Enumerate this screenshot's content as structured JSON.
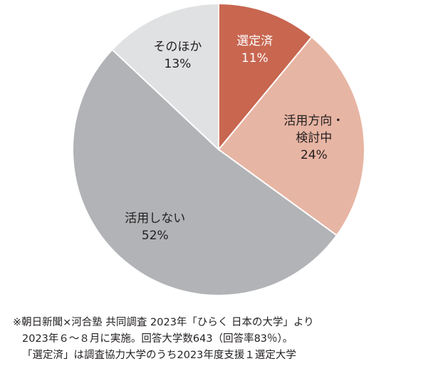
{
  "chart_data": {
    "type": "pie",
    "slices": [
      {
        "label": [
          "選定済"
        ],
        "value": 11,
        "value_label": "11%",
        "color": "#c86650",
        "text_color": "#ffffff"
      },
      {
        "label": [
          "活用方向・",
          "検討中"
        ],
        "value": 24,
        "value_label": "24%",
        "color": "#e7b5a3",
        "text_color": "#231f20"
      },
      {
        "label": [
          "活用しない"
        ],
        "value": 52,
        "value_label": "52%",
        "color": "#b1b3b6",
        "text_color": "#231f20"
      },
      {
        "label": [
          "そのほか"
        ],
        "value": 13,
        "value_label": "13%",
        "color": "#e0e1e2",
        "text_color": "#231f20"
      }
    ],
    "start": "top",
    "direction": "clockwise"
  },
  "note": {
    "lines": [
      "※朝日新聞×河合塾 共同調査 2023年「ひらく 日本の大学」より",
      "2023年６～８月に実施。回答大学数643（回答率83％）。",
      "「選定済」は調査協力大学のうち2023年度支援１選定大学"
    ]
  }
}
